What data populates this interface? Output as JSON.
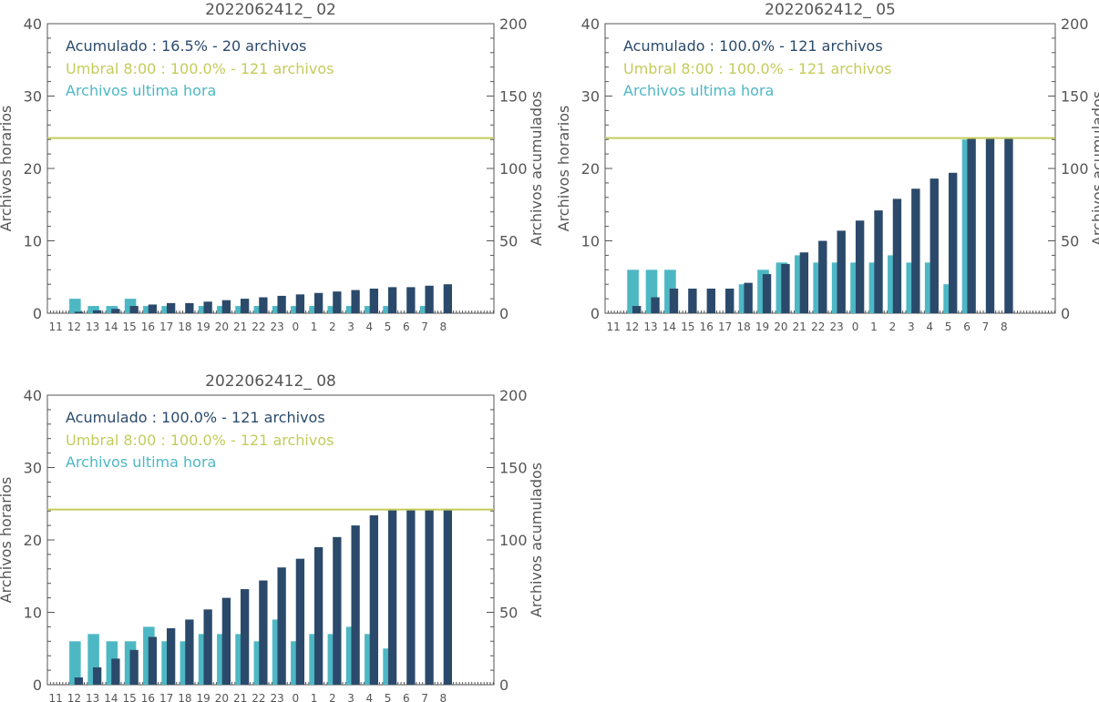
{
  "colors": {
    "hourly": "#4db8c4",
    "cumulative": "#2b4a6b",
    "threshold": "#c3cc5a",
    "axis": "#555555"
  },
  "chart_data": [
    {
      "type": "bar",
      "title": "2022062412_ 02",
      "ylabel_left": "Archivos horarios",
      "ylabel_right": "Archivos acumulados",
      "ylim_left": [
        0,
        40
      ],
      "ylim_right": [
        0,
        200
      ],
      "yticks_left": [
        "0",
        "10",
        "20",
        "30",
        "40"
      ],
      "yticks_right": [
        "0",
        "50",
        "100",
        "150",
        "200"
      ],
      "categories": [
        "11",
        "12",
        "13",
        "14",
        "15",
        "16",
        "17",
        "18",
        "19",
        "20",
        "21",
        "22",
        "23",
        "0",
        "1",
        "2",
        "3",
        "4",
        "5",
        "6",
        "7",
        "8"
      ],
      "legend": {
        "cumulative": "Acumulado : 16.5% - 20 archivos",
        "threshold": "Umbral 8:00 : 100.0% - 121 archivos",
        "hourly": "Archivos ultima hora"
      },
      "threshold_value": 121,
      "series": [
        {
          "name": "Archivos ultima hora",
          "axis": "left",
          "values": [
            0,
            2,
            1,
            1,
            2,
            1,
            1,
            0,
            1,
            1,
            1,
            1,
            1,
            1,
            1,
            1,
            1,
            1,
            1,
            0,
            1,
            0
          ]
        },
        {
          "name": "Acumulado",
          "axis": "right",
          "values": [
            0,
            1,
            2,
            3,
            5,
            6,
            7,
            7,
            8,
            9,
            10,
            11,
            12,
            13,
            14,
            15,
            16,
            17,
            18,
            18,
            19,
            20
          ]
        }
      ]
    },
    {
      "type": "bar",
      "title": "2022062412_ 05",
      "ylabel_left": "Archivos horarios",
      "ylabel_right": "Archivos acumulados",
      "ylim_left": [
        0,
        40
      ],
      "ylim_right": [
        0,
        200
      ],
      "yticks_left": [
        "0",
        "10",
        "20",
        "30",
        "40"
      ],
      "yticks_right": [
        "0",
        "50",
        "100",
        "150",
        "200"
      ],
      "categories": [
        "11",
        "12",
        "13",
        "14",
        "15",
        "16",
        "17",
        "18",
        "19",
        "20",
        "21",
        "22",
        "23",
        "0",
        "1",
        "2",
        "3",
        "4",
        "5",
        "6",
        "7",
        "8"
      ],
      "legend": {
        "cumulative": "Acumulado : 100.0% - 121 archivos",
        "threshold": "Umbral 8:00 : 100.0% - 121 archivos",
        "hourly": "Archivos ultima hora"
      },
      "threshold_value": 121,
      "series": [
        {
          "name": "Archivos ultima hora",
          "axis": "left",
          "values": [
            0,
            6,
            6,
            6,
            0,
            0,
            0,
            4,
            6,
            7,
            8,
            7,
            7,
            7,
            7,
            8,
            7,
            7,
            4,
            24,
            0,
            0
          ]
        },
        {
          "name": "Acumulado",
          "axis": "right",
          "values": [
            0,
            5,
            11,
            17,
            17,
            17,
            17,
            21,
            27,
            34,
            42,
            50,
            57,
            64,
            71,
            79,
            86,
            93,
            97,
            121,
            121,
            121
          ]
        }
      ]
    },
    {
      "type": "bar",
      "title": "2022062412_ 08",
      "ylabel_left": "Archivos horarios",
      "ylabel_right": "Archivos acumulados",
      "ylim_left": [
        0,
        40
      ],
      "ylim_right": [
        0,
        200
      ],
      "yticks_left": [
        "0",
        "10",
        "20",
        "30",
        "40"
      ],
      "yticks_right": [
        "0",
        "50",
        "100",
        "150",
        "200"
      ],
      "categories": [
        "11",
        "12",
        "13",
        "14",
        "15",
        "16",
        "17",
        "18",
        "19",
        "20",
        "21",
        "22",
        "23",
        "0",
        "1",
        "2",
        "3",
        "4",
        "5",
        "6",
        "7",
        "8"
      ],
      "legend": {
        "cumulative": "Acumulado : 100.0% - 121 archivos",
        "threshold": "Umbral 8:00 : 100.0% - 121 archivos",
        "hourly": "Archivos ultima hora"
      },
      "threshold_value": 121,
      "series": [
        {
          "name": "Archivos ultima hora",
          "axis": "left",
          "values": [
            0,
            6,
            7,
            6,
            6,
            8,
            6,
            6,
            7,
            7,
            7,
            6,
            9,
            6,
            7,
            7,
            8,
            7,
            5,
            0,
            0,
            0
          ]
        },
        {
          "name": "Acumulado",
          "axis": "right",
          "values": [
            0,
            5,
            12,
            18,
            24,
            33,
            39,
            45,
            52,
            60,
            66,
            72,
            81,
            87,
            95,
            102,
            110,
            117,
            121,
            121,
            121,
            121
          ]
        }
      ]
    }
  ]
}
